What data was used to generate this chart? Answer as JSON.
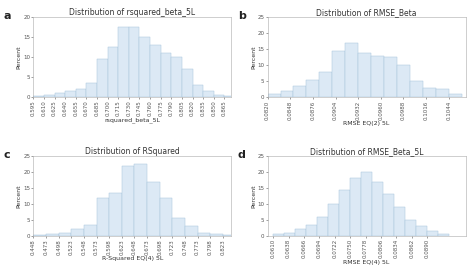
{
  "panels": [
    {
      "label": "a",
      "title": "Distribution of rsquared_beta_5L",
      "xlabel": "rsquared_beta_5L",
      "ylabel": "Percent",
      "xlim": [
        0.595,
        0.875
      ],
      "ylim": [
        0,
        20
      ],
      "yticks": [
        0,
        5,
        10,
        15,
        20
      ],
      "xtick_vals": [
        0.595,
        0.61,
        0.625,
        0.64,
        0.655,
        0.67,
        0.685,
        0.7,
        0.715,
        0.73,
        0.745,
        0.76,
        0.775,
        0.79,
        0.805,
        0.82,
        0.835,
        0.85,
        0.865
      ],
      "bar_left": [
        0.595,
        0.61,
        0.625,
        0.64,
        0.655,
        0.67,
        0.685,
        0.7,
        0.715,
        0.73,
        0.745,
        0.76,
        0.775,
        0.79,
        0.805,
        0.82,
        0.835,
        0.85,
        0.865
      ],
      "bar_heights": [
        0.2,
        0.5,
        1.0,
        1.5,
        2.0,
        3.5,
        9.5,
        12.5,
        17.5,
        17.5,
        15.0,
        13.0,
        11.0,
        10.0,
        7.0,
        3.0,
        1.5,
        0.5,
        0.3
      ],
      "bar_width": 0.015
    },
    {
      "label": "b",
      "title": "Distribution of RMSE_Beta",
      "xlabel": "RMSE EQ(2) 5L",
      "ylabel": "Percent",
      "xlim": [
        0.082,
        0.1065
      ],
      "ylim": [
        0,
        25
      ],
      "yticks": [
        0,
        5,
        10,
        15,
        20,
        25
      ],
      "xtick_vals": [
        0.082,
        0.0848,
        0.0876,
        0.0904,
        0.0932,
        0.096,
        0.0988,
        0.1016,
        0.1044
      ],
      "bar_left": [
        0.082,
        0.0836,
        0.0852,
        0.0868,
        0.0884,
        0.09,
        0.0916,
        0.0932,
        0.0948,
        0.0964,
        0.098,
        0.0996,
        0.1012,
        0.1028,
        0.1044
      ],
      "bar_heights": [
        1.0,
        2.0,
        3.5,
        5.5,
        8.0,
        14.5,
        17.0,
        14.0,
        13.0,
        12.5,
        10.0,
        5.0,
        3.0,
        2.5,
        1.0
      ],
      "bar_width": 0.0016
    },
    {
      "label": "c",
      "title": "Distribution of RSquared",
      "xlabel": "R-Squared EQ(4) 5L",
      "ylabel": "Percent",
      "xlim": [
        0.448,
        0.84
      ],
      "ylim": [
        0,
        25
      ],
      "yticks": [
        0,
        5,
        10,
        15,
        20,
        25
      ],
      "xtick_vals": [
        0.448,
        0.473,
        0.498,
        0.523,
        0.548,
        0.573,
        0.598,
        0.623,
        0.648,
        0.673,
        0.698,
        0.723,
        0.748,
        0.773,
        0.798,
        0.823
      ],
      "bar_left": [
        0.448,
        0.473,
        0.498,
        0.523,
        0.548,
        0.573,
        0.598,
        0.623,
        0.648,
        0.673,
        0.698,
        0.723,
        0.748,
        0.773,
        0.798,
        0.823
      ],
      "bar_heights": [
        0.3,
        0.5,
        1.0,
        2.0,
        3.5,
        12.0,
        13.5,
        22.0,
        22.5,
        17.0,
        12.0,
        5.5,
        3.0,
        1.0,
        0.5,
        0.3
      ],
      "bar_width": 0.025
    },
    {
      "label": "d",
      "title": "Distribution of RMSE_Beta_5L",
      "xlabel": "RMSE EQ(4) 5L",
      "ylabel": "Percent",
      "xlim": [
        0.06,
        0.096
      ],
      "ylim": [
        0,
        25
      ],
      "yticks": [
        0,
        5,
        10,
        15,
        20,
        25
      ],
      "xtick_vals": [
        0.061,
        0.0638,
        0.0666,
        0.0694,
        0.0722,
        0.075,
        0.0778,
        0.0806,
        0.0834,
        0.0862,
        0.089
      ],
      "bar_left": [
        0.061,
        0.063,
        0.065,
        0.067,
        0.069,
        0.071,
        0.073,
        0.075,
        0.077,
        0.079,
        0.081,
        0.083,
        0.085,
        0.087,
        0.089,
        0.091
      ],
      "bar_heights": [
        0.5,
        1.0,
        2.0,
        3.5,
        6.0,
        10.0,
        14.5,
        18.0,
        20.0,
        17.0,
        13.0,
        9.0,
        5.0,
        3.0,
        1.5,
        0.5
      ],
      "bar_width": 0.002
    }
  ],
  "bar_facecolor": "#dce9f5",
  "bar_edgecolor": "#a8c4dc",
  "background_color": "#ffffff",
  "title_fontsize": 5.5,
  "label_fontsize": 4.5,
  "tick_fontsize": 4.0,
  "panel_label_fontsize": 8,
  "spine_color": "#aaaaaa"
}
